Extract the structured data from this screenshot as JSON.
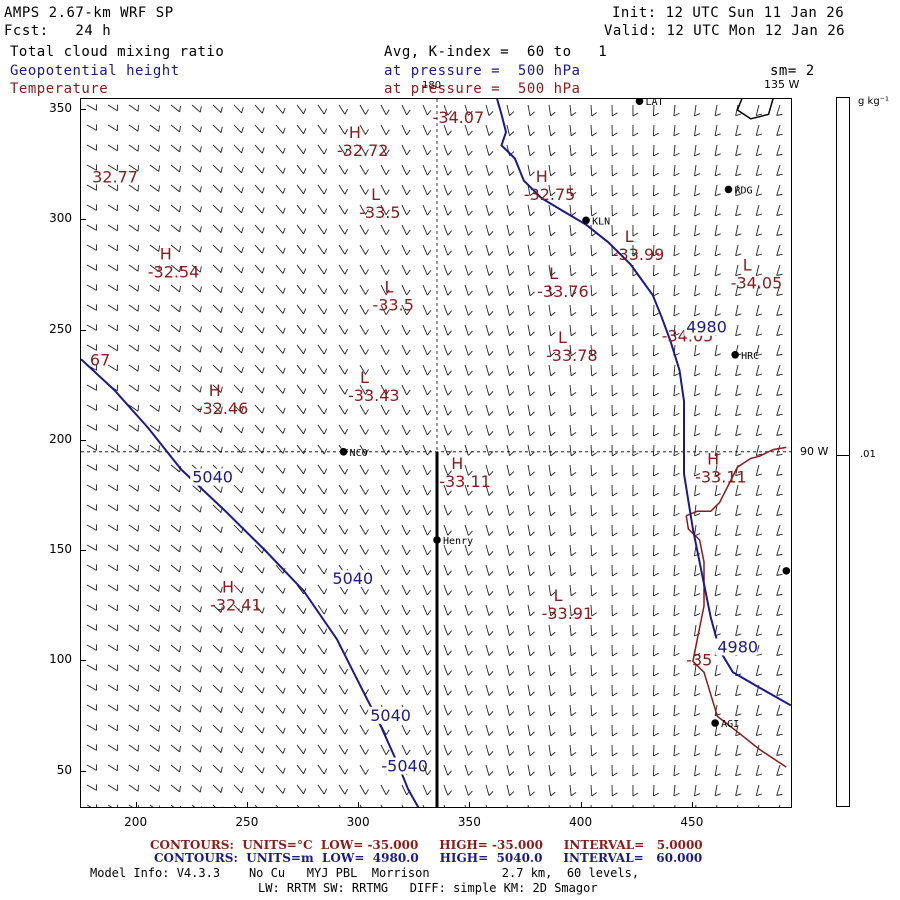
{
  "header": {
    "model": "AMPS 2.67-km WRF SP",
    "fcst": "Fcst:   24 h",
    "init": "Init: 12 UTC Sun 11 Jan 26",
    "valid": "Valid: 12 UTC Mon 12 Jan 26",
    "field1": "Total cloud mixing ratio",
    "field1_avg": "Avg, K-index =  60 to   1",
    "field2": "Geopotential height",
    "field2_level": "at pressure =  500 hPa",
    "field3": "Temperature",
    "field3_level": "at pressure =  500 hPa",
    "smoothing": "sm= 2"
  },
  "colors": {
    "geopotential": "#1a1a8c",
    "temperature": "#8b1a1a",
    "coast": "#8b1a1a",
    "barbs": "#222222"
  },
  "map": {
    "meridian_180": "180",
    "meridian_135w": "135 W",
    "meridian_90w": "90 W"
  },
  "axes": {
    "x_ticks": [
      "200",
      "250",
      "300",
      "350",
      "400",
      "450"
    ],
    "y_ticks": [
      "350",
      "300",
      "250",
      "200",
      "150",
      "100",
      "50"
    ],
    "xlim": [
      175,
      495
    ],
    "ylim": [
      33,
      355
    ]
  },
  "colorbar": {
    "unit": "g kg⁻¹",
    "value": ".01"
  },
  "stations": [
    {
      "name": "LAT",
      "x": 426,
      "y": 354
    },
    {
      "name": "RDG",
      "x": 466,
      "y": 314
    },
    {
      "name": "KLN",
      "x": 402,
      "y": 300
    },
    {
      "name": "HRC",
      "x": 469,
      "y": 239
    },
    {
      "name": "NCO",
      "x": 293,
      "y": 195
    },
    {
      "name": "Henry",
      "x": 335,
      "y": 155
    },
    {
      "name": "AGI",
      "x": 460,
      "y": 72
    },
    {
      "name": "",
      "x": 492,
      "y": 141
    }
  ],
  "temperature_labels": [
    {
      "type": "H",
      "value": "-32.72",
      "x": 290,
      "y": 330
    },
    {
      "type": "",
      "value": "-34.07",
      "x": 333,
      "y": 345
    },
    {
      "type": "",
      "value": "32.77",
      "x": 180,
      "y": 318
    },
    {
      "type": "L",
      "value": "-33.5",
      "x": 300,
      "y": 302
    },
    {
      "type": "H",
      "value": "-32.75",
      "x": 374,
      "y": 310
    },
    {
      "type": "L",
      "value": "-33.99",
      "x": 414,
      "y": 283
    },
    {
      "type": "H",
      "value": "-32.54",
      "x": 205,
      "y": 275
    },
    {
      "type": "L",
      "value": "-33.76",
      "x": 380,
      "y": 266
    },
    {
      "type": "L",
      "value": "-34.05",
      "x": 467,
      "y": 270
    },
    {
      "type": "L",
      "value": "-33.5",
      "x": 306,
      "y": 260
    },
    {
      "type": "",
      "value": "-34.05",
      "x": 436,
      "y": 246
    },
    {
      "type": "L",
      "value": "-33.78",
      "x": 384,
      "y": 237
    },
    {
      "type": "",
      "value": "67",
      "x": 179,
      "y": 235
    },
    {
      "type": "L",
      "value": "-33.43",
      "x": 295,
      "y": 219
    },
    {
      "type": "H",
      "value": "-32.46",
      "x": 227,
      "y": 213
    },
    {
      "type": "H",
      "value": "-33.11",
      "x": 336,
      "y": 180
    },
    {
      "type": "H",
      "value": "-33.11",
      "x": 451,
      "y": 182
    },
    {
      "type": "L",
      "value": "-33.91",
      "x": 382,
      "y": 120
    },
    {
      "type": "H",
      "value": "-32.41",
      "x": 233,
      "y": 124
    },
    {
      "type": "",
      "value": "-35",
      "x": 447,
      "y": 99
    }
  ],
  "height_labels": [
    {
      "value": "5040",
      "x": 225,
      "y": 181
    },
    {
      "value": "5040",
      "x": 288,
      "y": 135
    },
    {
      "value": "5040",
      "x": 305,
      "y": 73
    },
    {
      "value": "-5040",
      "x": 310,
      "y": 50
    },
    {
      "value": "4980",
      "x": 447,
      "y": 249
    },
    {
      "value": "4980",
      "x": 461,
      "y": 104
    }
  ],
  "footer": {
    "red_contours": "CONTOURS:  UNITS=°C  LOW= -35.000     HIGH= -35.000     INTERVAL=   5.0000",
    "blue_contours": "CONTOURS:  UNITS=m  LOW=  4980.0     HIGH=  5040.0     INTERVAL=   60.000",
    "model_info": "Model Info: V4.3.3    No Cu   MYJ PBL  Morrison          2.7 km,  60 levels,",
    "model_info2": "LW: RRTM SW: RRTMG   DIFF: simple KM: 2D Smagor"
  }
}
